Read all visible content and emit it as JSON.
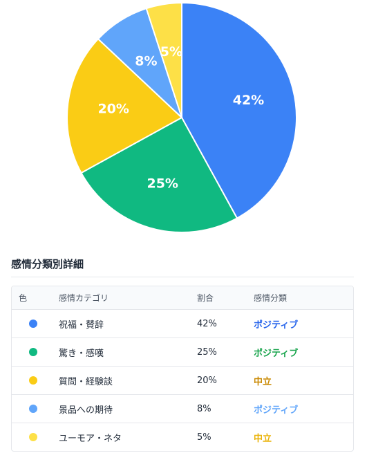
{
  "chart_data": {
    "type": "pie",
    "slices": [
      {
        "label": "42%",
        "value": 42,
        "color": "#3b82f6"
      },
      {
        "label": "25%",
        "value": 25,
        "color": "#10b981"
      },
      {
        "label": "20%",
        "value": 20,
        "color": "#facc15"
      },
      {
        "label": "8%",
        "value": 8,
        "color": "#60a5fa"
      },
      {
        "label": "5%",
        "value": 5,
        "color": "#fde047"
      }
    ]
  },
  "details": {
    "title": "感情分類別詳細",
    "headers": {
      "color": "色",
      "category": "感情カテゴリ",
      "ratio": "割合",
      "classification": "感情分類"
    },
    "rows": [
      {
        "category": "祝福・賛辞",
        "ratio": "42%",
        "classification": "ポジティブ",
        "dot_color": "#3b82f6",
        "class_color": "#2563eb"
      },
      {
        "category": "驚き・感嘆",
        "ratio": "25%",
        "classification": "ポジティブ",
        "dot_color": "#10b981",
        "class_color": "#16a34a"
      },
      {
        "category": "質問・経験談",
        "ratio": "20%",
        "classification": "中立",
        "dot_color": "#facc15",
        "class_color": "#ca8a04"
      },
      {
        "category": "景品への期待",
        "ratio": "8%",
        "classification": "ポジティブ",
        "dot_color": "#60a5fa",
        "class_color": "#60a5fa"
      },
      {
        "category": "ユーモア・ネタ",
        "ratio": "5%",
        "classification": "中立",
        "dot_color": "#fde047",
        "class_color": "#eab308"
      }
    ]
  }
}
